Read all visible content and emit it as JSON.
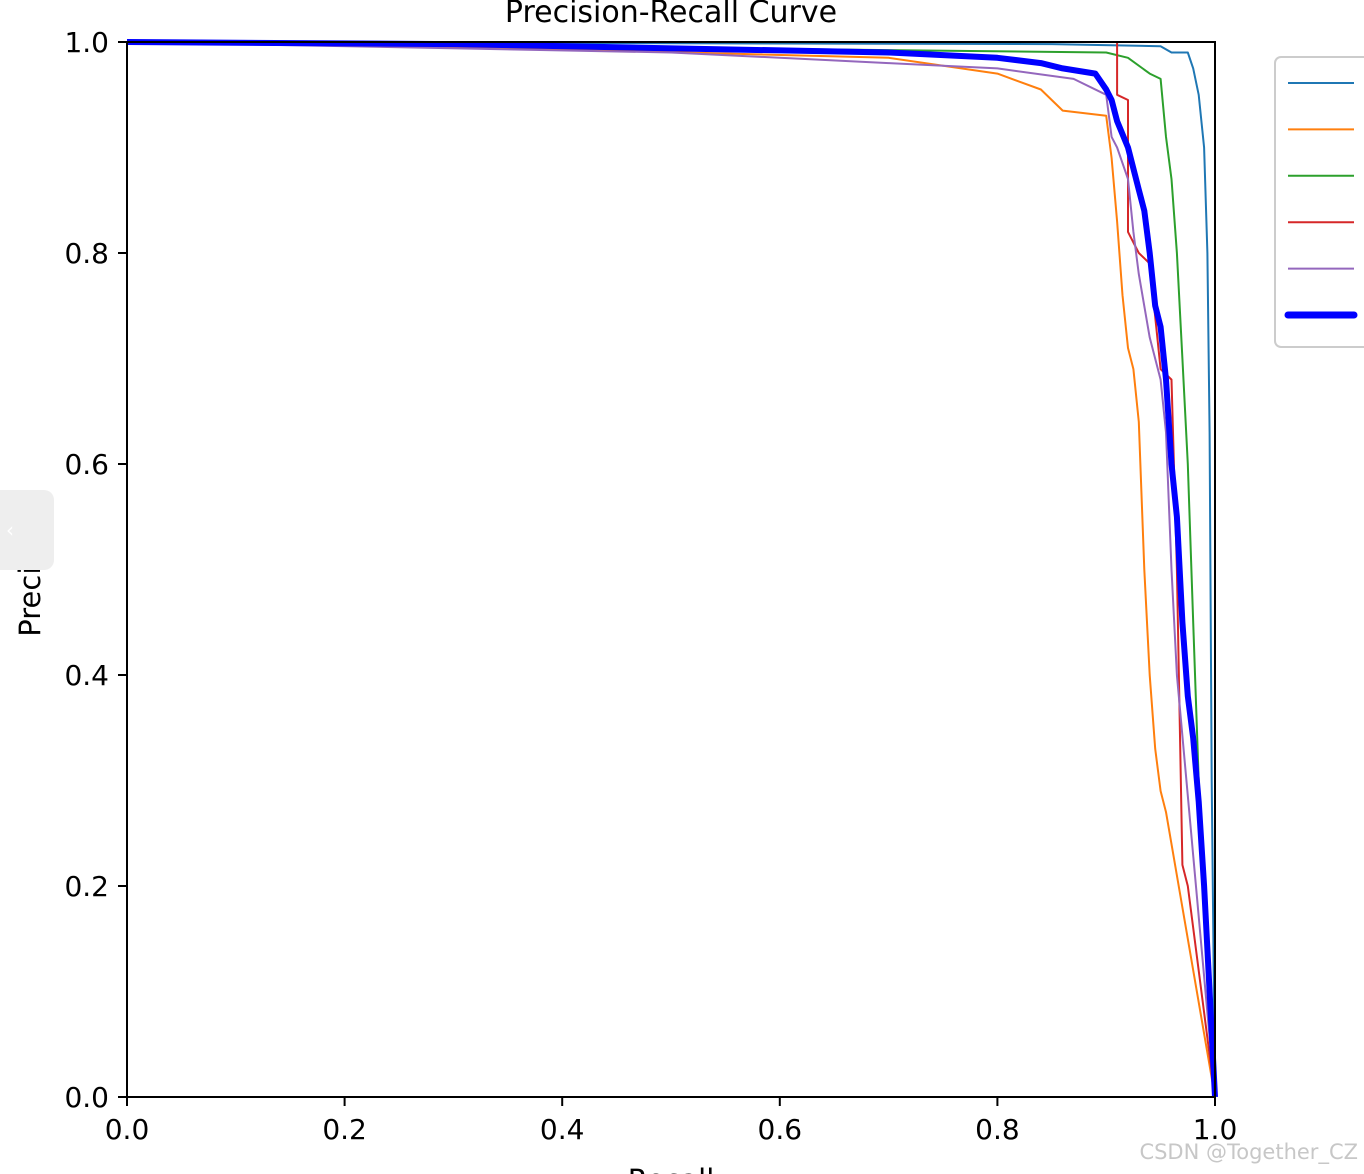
{
  "chart_data": {
    "type": "line",
    "title": "Precision-Recall Curve",
    "xlabel": "Recall",
    "ylabel": "Precision",
    "xlim": [
      0,
      1
    ],
    "ylim": [
      0,
      1
    ],
    "x_ticks": [
      "0.0",
      "0.2",
      "0.4",
      "0.6",
      "0.8",
      "1.0"
    ],
    "y_ticks": [
      "0.0",
      "0.2",
      "0.4",
      "0.6",
      "0.8",
      "1.0"
    ],
    "grid": false,
    "legend": {
      "placement": "outside-right",
      "labels_visible": false
    },
    "series": [
      {
        "color": "#1f77b4",
        "width": "thin",
        "x": [
          0.0,
          0.85,
          0.95,
          0.96,
          0.975,
          0.98,
          0.985,
          0.99,
          0.993,
          0.995,
          0.997,
          1.0
        ],
        "y": [
          1.0,
          0.998,
          0.996,
          0.99,
          0.99,
          0.975,
          0.95,
          0.9,
          0.8,
          0.63,
          0.3,
          0.0
        ]
      },
      {
        "color": "#ff7f0e",
        "width": "thin",
        "x": [
          0.0,
          0.33,
          0.7,
          0.8,
          0.84,
          0.86,
          0.9,
          0.905,
          0.91,
          0.915,
          0.92,
          0.925,
          0.93,
          0.935,
          0.94,
          0.945,
          0.95,
          0.955,
          1.0
        ],
        "y": [
          1.0,
          0.995,
          0.985,
          0.97,
          0.955,
          0.935,
          0.93,
          0.89,
          0.83,
          0.76,
          0.71,
          0.69,
          0.64,
          0.5,
          0.4,
          0.33,
          0.29,
          0.27,
          0.0
        ]
      },
      {
        "color": "#2ca02c",
        "width": "thin",
        "x": [
          0.0,
          0.9,
          0.92,
          0.94,
          0.95,
          0.955,
          0.96,
          0.965,
          0.97,
          0.975,
          0.98,
          0.985,
          1.0
        ],
        "y": [
          1.0,
          0.99,
          0.985,
          0.97,
          0.965,
          0.91,
          0.87,
          0.8,
          0.7,
          0.6,
          0.45,
          0.3,
          0.0
        ]
      },
      {
        "color": "#d62728",
        "width": "thin",
        "x": [
          0.0,
          0.91,
          0.91,
          0.92,
          0.92,
          0.93,
          0.94,
          0.95,
          0.96,
          0.965,
          0.97,
          0.975,
          1.0
        ],
        "y": [
          1.0,
          1.0,
          0.95,
          0.945,
          0.82,
          0.8,
          0.79,
          0.69,
          0.68,
          0.5,
          0.22,
          0.2,
          0.0
        ]
      },
      {
        "color": "#9467bd",
        "width": "thin",
        "x": [
          0.0,
          0.5,
          0.6,
          0.7,
          0.8,
          0.87,
          0.9,
          0.905,
          0.91,
          0.92,
          0.925,
          0.93,
          0.94,
          0.95,
          0.955,
          0.96,
          0.965,
          1.0
        ],
        "y": [
          1.0,
          0.99,
          0.985,
          0.98,
          0.975,
          0.965,
          0.95,
          0.91,
          0.9,
          0.87,
          0.82,
          0.78,
          0.72,
          0.68,
          0.63,
          0.5,
          0.4,
          0.0
        ]
      },
      {
        "color": "#0000ff",
        "width": "thick",
        "x": [
          0.0,
          0.3,
          0.7,
          0.8,
          0.84,
          0.86,
          0.89,
          0.9,
          0.905,
          0.91,
          0.92,
          0.93,
          0.935,
          0.94,
          0.945,
          0.95,
          0.955,
          0.96,
          0.965,
          0.97,
          0.975,
          0.98,
          0.985,
          0.99,
          0.995,
          1.0
        ],
        "y": [
          1.0,
          0.998,
          0.99,
          0.985,
          0.98,
          0.975,
          0.97,
          0.955,
          0.945,
          0.925,
          0.9,
          0.86,
          0.84,
          0.8,
          0.75,
          0.73,
          0.68,
          0.6,
          0.55,
          0.45,
          0.38,
          0.34,
          0.28,
          0.2,
          0.1,
          0.0
        ]
      }
    ]
  },
  "watermark": {
    "text": "CSDN @Together_CZ"
  },
  "side_handle": {
    "icon": "chevron-left-icon",
    "glyph": "‹"
  }
}
